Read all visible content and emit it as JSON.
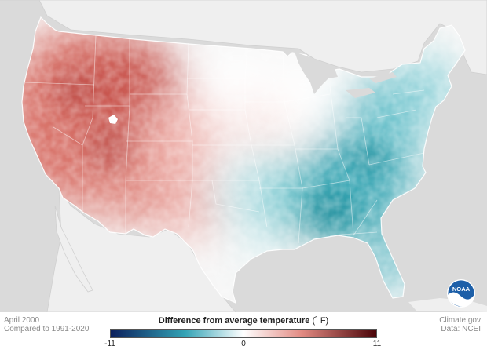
{
  "map": {
    "type": "choropleth",
    "region": "contiguous United States",
    "variable": "temperature anomaly",
    "pattern": [
      {
        "area": "West (Pacific coast, Great Basin, Rockies, Southwest)",
        "anomaly": "warm",
        "approx_value": 5
      },
      {
        "area": "Northern Plains and Upper Midwest",
        "anomaly": "near average",
        "approx_value": 0
      },
      {
        "area": "Southern Plains",
        "anomaly": "slightly warm",
        "approx_value": 1.5
      },
      {
        "area": "Lower Mississippi Valley, Southeast, Appalachians",
        "anomaly": "cool",
        "approx_value": -4
      },
      {
        "area": "Northeast and Great Lakes",
        "anomaly": "slightly cool",
        "approx_value": -2
      },
      {
        "area": "Florida peninsula",
        "anomaly": "cool",
        "approx_value": -3
      }
    ],
    "colors": {
      "ocean": "#dadada",
      "land_outside": "#efefef",
      "cold_extreme": "#0b1f5c",
      "cool": "#33a3b5",
      "neutral": "#ffffff",
      "warm": "#e28a82",
      "warm_extreme": "#4a0408"
    }
  },
  "meta": {
    "date": "April 2000",
    "baseline": "Compared to 1991-2020",
    "source1": "Climate.gov",
    "source2": "Data: NCEI"
  },
  "legend": {
    "title": "Difference from average temperature",
    "unit": "(˚ F)",
    "min_label": "-11",
    "mid_label": "0",
    "max_label": "11",
    "min": -11,
    "max": 11
  },
  "logo": {
    "text": "NOAA",
    "icon": "noaa-logo-icon"
  }
}
